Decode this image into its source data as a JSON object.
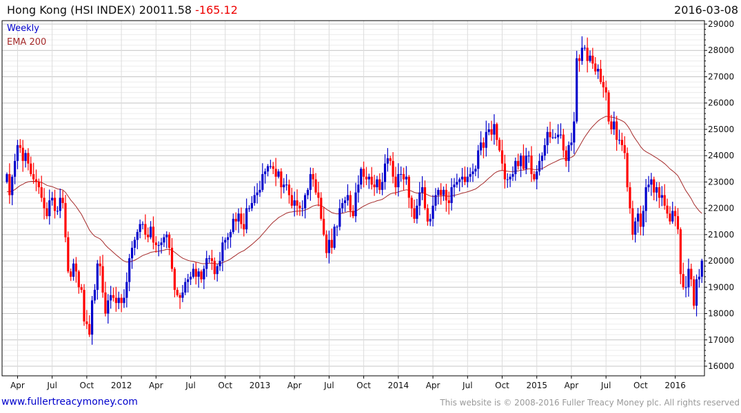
{
  "header": {
    "name": "Hong Kong (HSI INDEX)",
    "last": "20011.58",
    "change": "-165.12",
    "date": "2016-03-08"
  },
  "legend": {
    "interval": "Weekly",
    "indicator": "EMA 200"
  },
  "footer": {
    "site": "www.fullertreacymoney.com",
    "copyright": "This website is © 2008-2016 Fuller Treacy Money plc. All rights reserved"
  },
  "colors": {
    "up": "#0000cc",
    "down": "#ff0000",
    "ema": "#a52a2a"
  },
  "chart_data": {
    "type": "candlestick",
    "title": "Hong Kong (HSI INDEX)",
    "interval": "weekly",
    "start_week": "2011-03-04",
    "ylim": [
      16000,
      29000
    ],
    "yticks": [
      16000,
      17000,
      18000,
      19000,
      20000,
      21000,
      22000,
      23000,
      24000,
      25000,
      26000,
      27000,
      28000,
      29000
    ],
    "xticks": [
      {
        "label": "Apr",
        "week": 4
      },
      {
        "label": "Jul",
        "week": 17
      },
      {
        "label": "Oct",
        "week": 30
      },
      {
        "label": "2012",
        "week": 43
      },
      {
        "label": "Apr",
        "week": 56
      },
      {
        "label": "Jul",
        "week": 69
      },
      {
        "label": "Oct",
        "week": 82
      },
      {
        "label": "2013",
        "week": 95
      },
      {
        "label": "Apr",
        "week": 108
      },
      {
        "label": "Jul",
        "week": 121
      },
      {
        "label": "Oct",
        "week": 134
      },
      {
        "label": "2014",
        "week": 147
      },
      {
        "label": "Apr",
        "week": 160
      },
      {
        "label": "Jul",
        "week": 173
      },
      {
        "label": "Oct",
        "week": 186
      },
      {
        "label": "2015",
        "week": 199
      },
      {
        "label": "Apr",
        "week": 212
      },
      {
        "label": "Jul",
        "week": 225
      },
      {
        "label": "Oct",
        "week": 238
      },
      {
        "label": "2016",
        "week": 251
      }
    ],
    "closes": [
      23300,
      22500,
      23200,
      23800,
      24400,
      24300,
      23800,
      24100,
      23700,
      23300,
      23100,
      23000,
      22800,
      22400,
      22000,
      21700,
      22300,
      22400,
      21900,
      21900,
      22400,
      22200,
      20900,
      19600,
      19400,
      19900,
      19600,
      19000,
      18900,
      17700,
      17600,
      17200,
      18500,
      18900,
      19900,
      19800,
      18800,
      18000,
      18500,
      18700,
      18600,
      18400,
      18600,
      18400,
      18600,
      19200,
      20100,
      20500,
      20800,
      21100,
      21400,
      21400,
      21000,
      20900,
      21300,
      20700,
      20600,
      20600,
      20700,
      20900,
      21000,
      20500,
      19700,
      18900,
      18700,
      18600,
      18800,
      19200,
      19300,
      19400,
      19700,
      19400,
      19600,
      19300,
      19700,
      20100,
      20100,
      20000,
      19500,
      19800,
      20000,
      20700,
      20800,
      20900,
      21100,
      21600,
      21500,
      21800,
      21400,
      21200,
      22000,
      22000,
      22200,
      22500,
      22600,
      22700,
      23300,
      23400,
      23600,
      23600,
      23500,
      23200,
      23400,
      22800,
      22900,
      22900,
      22500,
      22100,
      22300,
      22100,
      22000,
      22000,
      22500,
      22700,
      23300,
      23100,
      22600,
      22400,
      21600,
      21000,
      20300,
      20800,
      20500,
      21300,
      21300,
      22000,
      22200,
      22300,
      22500,
      21900,
      21700,
      22600,
      22900,
      23500,
      23200,
      23100,
      23200,
      22900,
      22800,
      23100,
      22700,
      23000,
      23700,
      23900,
      23800,
      23200,
      22800,
      23300,
      23300,
      23100,
      23200,
      22400,
      22000,
      21600,
      22100,
      22600,
      22800,
      22000,
      21500,
      21600,
      22100,
      22500,
      22700,
      22500,
      22700,
      22300,
      22200,
      22800,
      22900,
      23000,
      23100,
      23200,
      23000,
      23200,
      23300,
      23400,
      23500,
      24200,
      24500,
      24300,
      24900,
      25000,
      24800,
      25200,
      24600,
      24200,
      23700,
      23100,
      23100,
      23200,
      23300,
      23800,
      23600,
      24000,
      23500,
      24000,
      24000,
      23300,
      23100,
      23400,
      23800,
      24000,
      24400,
      24900,
      24700,
      24700,
      24700,
      24800,
      24800,
      24200,
      23800,
      24400,
      24500,
      25300,
      27700,
      27600,
      28100,
      28100,
      27600,
      27800,
      27500,
      27200,
      27300,
      26800,
      26600,
      26400,
      25300,
      25000,
      25300,
      24600,
      24600,
      24400,
      24100,
      22800,
      22000,
      21000,
      21500,
      21800,
      21300,
      21900,
      22800,
      22900,
      23100,
      22600,
      22800,
      22400,
      22500,
      22100,
      21800,
      21500,
      21900,
      21700,
      21200,
      19500,
      19000,
      19000,
      19700,
      19300,
      18300,
      19300,
      19400,
      20011.58
    ]
  }
}
